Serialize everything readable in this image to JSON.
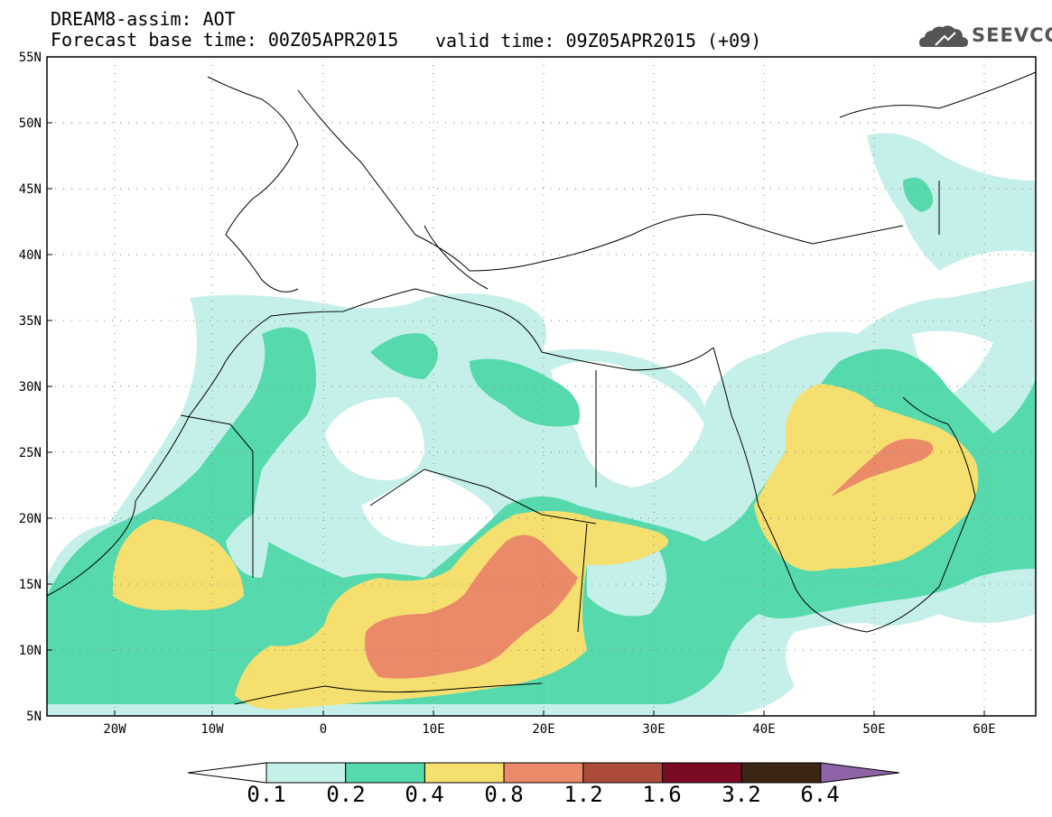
{
  "header": {
    "title": "DREAM8-assim: AOT",
    "forecast_base": "Forecast base time: 00Z05APR2015",
    "valid_time": "valid time: 09Z05APR2015 (+09)",
    "logo_text": "SEEVCCC"
  },
  "map": {
    "lat_labels": [
      "55N",
      "50N",
      "45N",
      "40N",
      "35N",
      "30N",
      "25N",
      "20N",
      "15N",
      "10N",
      "5N"
    ],
    "lon_labels": [
      "20W",
      "10W",
      "0",
      "10E",
      "20E",
      "30E",
      "40E",
      "50E",
      "60E"
    ],
    "lon_range": [
      -25,
      65
    ],
    "lat_range": [
      5,
      55
    ]
  },
  "colorbar": {
    "levels": [
      "0.1",
      "0.2",
      "0.4",
      "0.8",
      "1.2",
      "1.6",
      "3.2",
      "6.4"
    ],
    "colors": [
      "#ffffff",
      "#c5f0ea",
      "#57d9ae",
      "#f5df6f",
      "#eb8a69",
      "#ad4b3a",
      "#7b0a24",
      "#3b2514",
      "#8e63a8"
    ]
  }
}
